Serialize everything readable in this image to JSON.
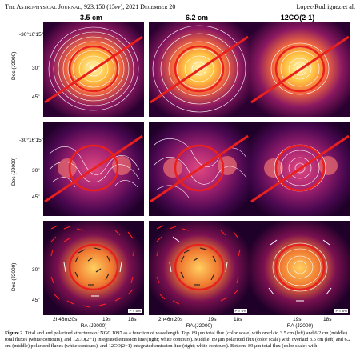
{
  "header": {
    "journal": "The Astrophysical Journal, 923:150 (15pp), 2021 December 20",
    "authors": "Lopez-Rodriguez et al."
  },
  "columns": {
    "col1": "3.5 cm",
    "col2": "6.2 cm",
    "col3": "12CO(2-1)"
  },
  "axes": {
    "dec_label": "Dec (J2000)",
    "ra_label": "RA (J2000)",
    "dec_ticks": [
      "-30°16'15\"",
      "30\"",
      "45\""
    ],
    "ra_ticks": [
      "2h46m20s",
      "19s",
      "18s"
    ],
    "ra_ticks_col3": [
      "19s",
      "18s"
    ]
  },
  "vector_scale": "P = 5%",
  "caption": {
    "label": "Figure 2.",
    "text": "Total and and polarized structures of NGC 1097 as a function of wavelength. Top: 89 μm total flux (color scale) with overlaid 3.5 cm (left) and 6.2 cm (middle) total fluxes (white contours), and 12CO(2−1) integrated emission line (right; white contours). Middle: 89 μm polarized flux (color scale) with overlaid 3.5 cm (left) and 6.2 cm (middle) polarized fluxes (white contours), and 12CO(2−1) integrated emission line (right; white contours). Bottom: 89 μm total flux (color scale) with"
  },
  "colors": {
    "ring": "#e8201e",
    "contour": "#ffffff",
    "cmap_low": "#2a0030",
    "cmap_mid": "#d4407a",
    "cmap_high": "#ffd060"
  }
}
